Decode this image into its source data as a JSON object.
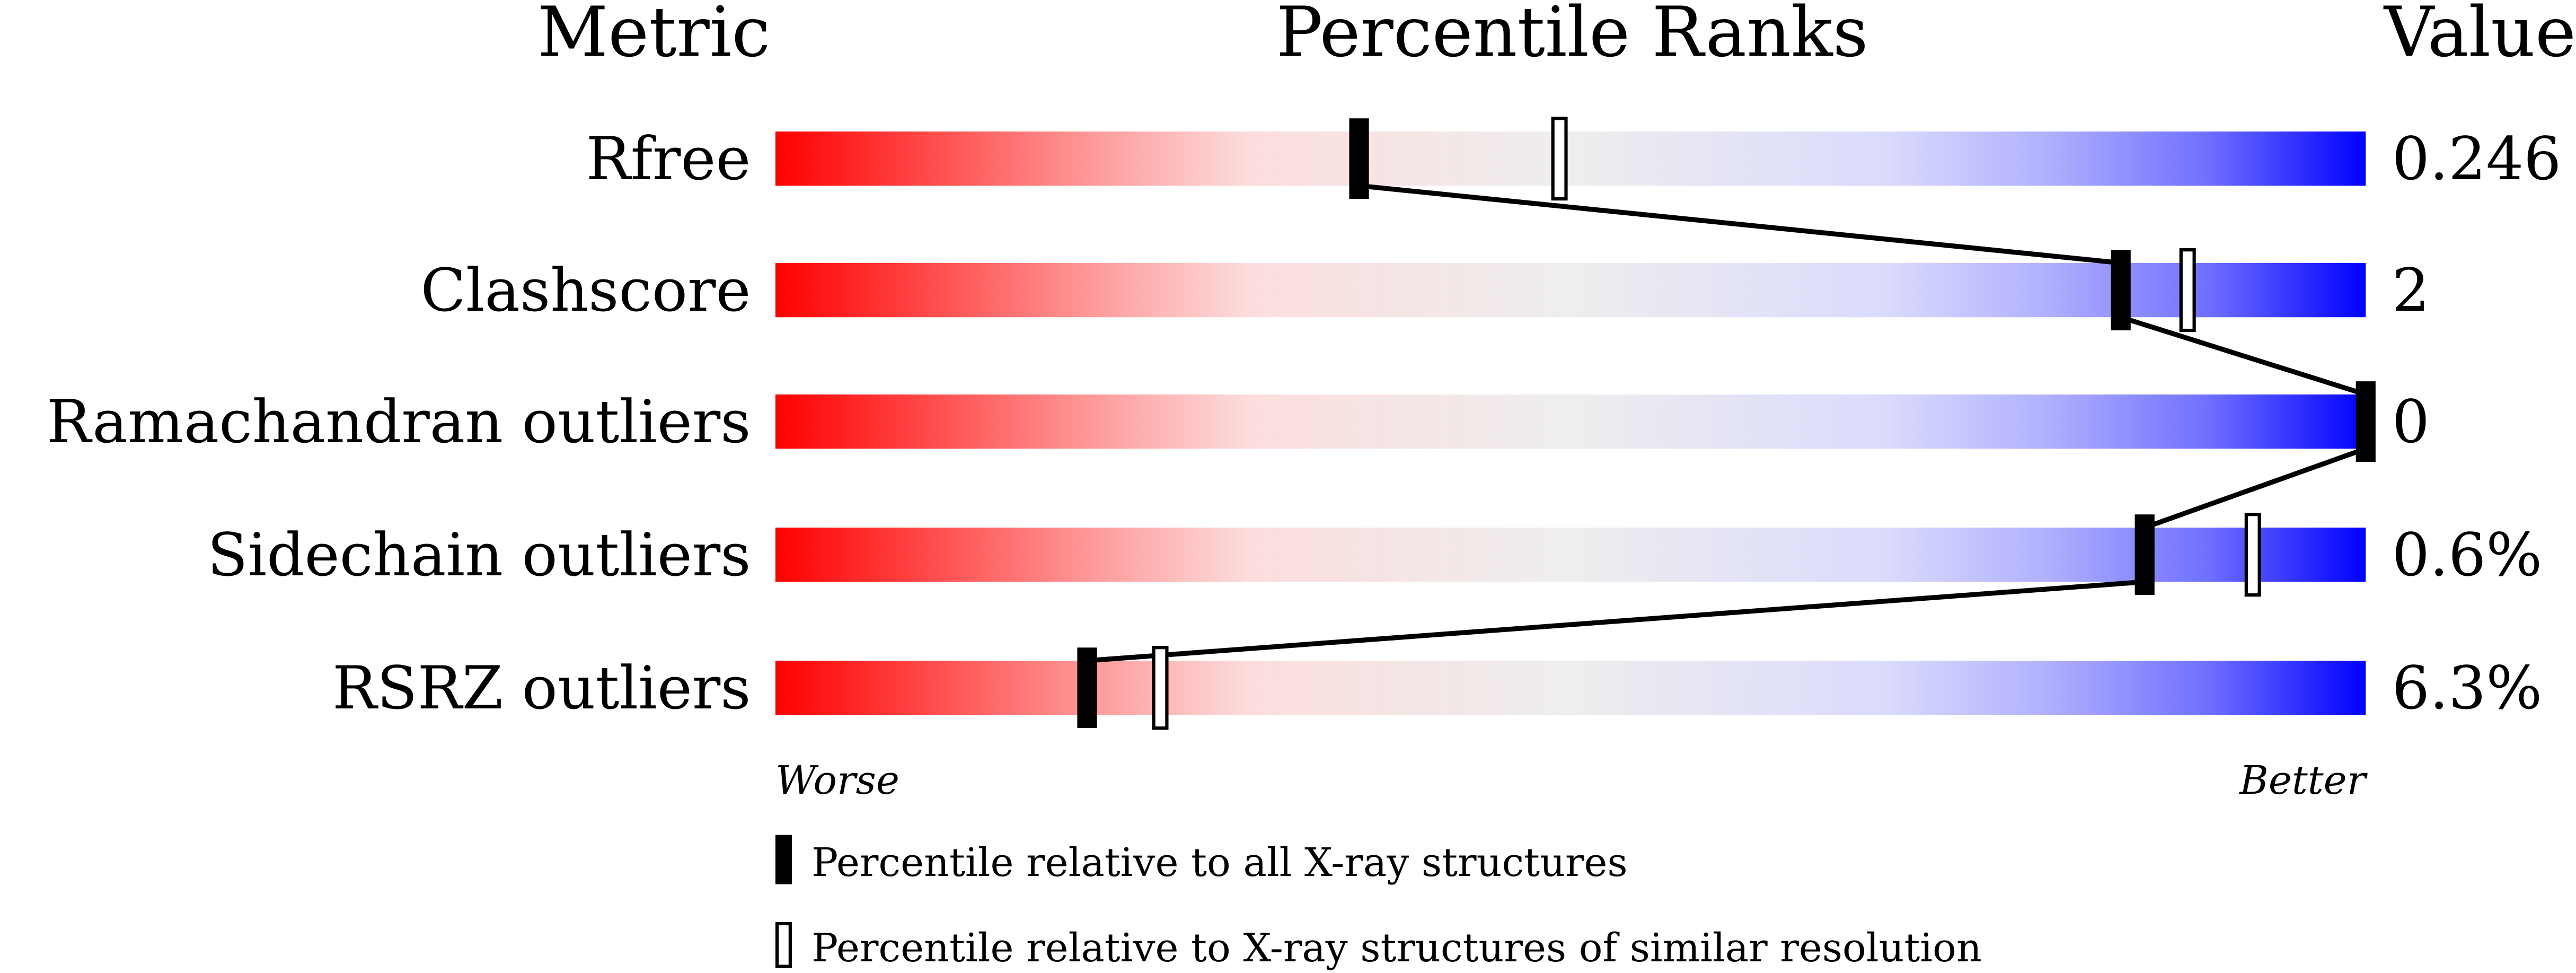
{
  "chart_data": {
    "type": "percentile-ranks",
    "headers": {
      "metric": "Metric",
      "ranks": "Percentile Ranks",
      "value": "Value"
    },
    "xlim": [
      0,
      100
    ],
    "axis_labels": {
      "left": "Worse",
      "right": "Better"
    },
    "metrics": [
      {
        "name": "Rfree",
        "value": "0.246",
        "percentile_all": 36.7,
        "percentile_similar": 49.3
      },
      {
        "name": "Clashscore",
        "value": "2",
        "percentile_all": 84.6,
        "percentile_similar": 88.8
      },
      {
        "name": "Ramachandran outliers",
        "value": "0",
        "percentile_all": 100,
        "percentile_similar": 100
      },
      {
        "name": "Sidechain outliers",
        "value": "0.6%",
        "percentile_all": 86.1,
        "percentile_similar": 92.9
      },
      {
        "name": "RSRZ outliers",
        "value": "6.3%",
        "percentile_all": 19.6,
        "percentile_similar": 24.2
      }
    ],
    "legend": {
      "all": "Percentile relative to all X-ray structures",
      "similar": "Percentile relative to X-ray structures of similar resolution"
    },
    "colors": {
      "worse": "#ff0000",
      "middle": "#eeeeee",
      "better": "#0000ff"
    }
  }
}
